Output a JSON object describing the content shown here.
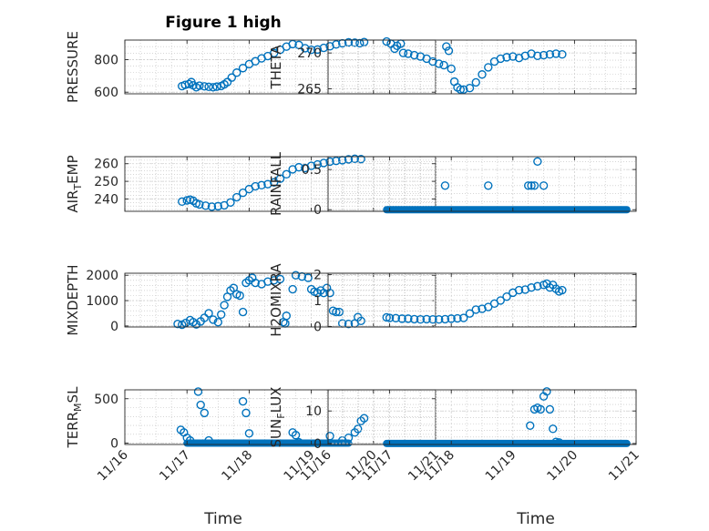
{
  "figure": {
    "title": "Figure 1 high",
    "xlabel": "Time"
  },
  "colors": {
    "marker": "#0072BD",
    "axis": "#262626",
    "grid": "#bdbdbd"
  },
  "chart_data": [
    {
      "type": "scatter",
      "name": "pressure",
      "ylabel": "PRESSURE",
      "ylabel_parts": [
        {
          "t": "PRESSURE",
          "s": "n"
        }
      ],
      "xlim": [
        16,
        21
      ],
      "ylim": [
        590,
        920
      ],
      "yticks": [
        600,
        800
      ],
      "yticklabels": [
        "600",
        "800"
      ],
      "xticks": [
        16,
        17,
        18,
        19,
        20,
        21
      ],
      "xticklabels": [
        "11/16",
        "11/17",
        "11/18",
        "11/19",
        "11/20",
        "11/21"
      ],
      "grid": "on",
      "show_xticklabels": false,
      "points": [
        [
          16.92,
          637
        ],
        [
          16.97,
          645
        ],
        [
          17.03,
          650
        ],
        [
          17.07,
          662
        ],
        [
          17.1,
          642
        ],
        [
          17.15,
          630
        ],
        [
          17.2,
          640
        ],
        [
          17.28,
          636
        ],
        [
          17.35,
          633
        ],
        [
          17.42,
          630
        ],
        [
          17.48,
          634
        ],
        [
          17.55,
          638
        ],
        [
          17.6,
          648
        ],
        [
          17.65,
          662
        ],
        [
          17.72,
          690
        ],
        [
          17.8,
          720
        ],
        [
          17.9,
          748
        ],
        [
          18.0,
          772
        ],
        [
          18.1,
          790
        ],
        [
          18.2,
          808
        ],
        [
          18.3,
          822
        ],
        [
          18.4,
          840
        ],
        [
          18.5,
          860
        ],
        [
          18.6,
          880
        ],
        [
          18.7,
          895
        ],
        [
          18.8,
          890
        ],
        [
          18.9,
          870
        ],
        [
          19.0,
          860
        ],
        [
          19.1,
          862
        ],
        [
          19.2,
          872
        ],
        [
          19.3,
          882
        ],
        [
          19.4,
          893
        ],
        [
          19.5,
          900
        ],
        [
          19.6,
          906
        ],
        [
          19.7,
          904
        ],
        [
          19.78,
          901
        ],
        [
          19.85,
          908
        ]
      ]
    },
    {
      "type": "scatter",
      "name": "theta",
      "ylabel": "THETA",
      "ylabel_parts": [
        {
          "t": "THETA",
          "s": "n"
        }
      ],
      "xlim": [
        16,
        21
      ],
      "ylim": [
        264.3,
        271.8
      ],
      "yticks": [
        265,
        270
      ],
      "yticklabels": [
        "265",
        "270"
      ],
      "xticks": [
        16,
        17,
        18,
        19,
        20,
        21
      ],
      "xticklabels": [
        "11/16",
        "11/17",
        "11/18",
        "11/19",
        "11/20",
        "11/21"
      ],
      "grid": "on",
      "show_xticklabels": false,
      "points": [
        [
          16.95,
          271.6
        ],
        [
          17.02,
          271.3
        ],
        [
          17.08,
          270.6
        ],
        [
          17.12,
          271.0
        ],
        [
          17.18,
          271.3
        ],
        [
          17.22,
          270.0
        ],
        [
          17.3,
          269.9
        ],
        [
          17.4,
          269.7
        ],
        [
          17.5,
          269.5
        ],
        [
          17.6,
          269.2
        ],
        [
          17.7,
          268.8
        ],
        [
          17.8,
          268.5
        ],
        [
          17.88,
          268.3
        ],
        [
          17.92,
          270.9
        ],
        [
          17.96,
          270.3
        ],
        [
          18.0,
          267.8
        ],
        [
          18.05,
          266.0
        ],
        [
          18.1,
          265.2
        ],
        [
          18.15,
          264.9
        ],
        [
          18.2,
          264.9
        ],
        [
          18.3,
          265.1
        ],
        [
          18.4,
          265.9
        ],
        [
          18.5,
          267.0
        ],
        [
          18.6,
          268.0
        ],
        [
          18.7,
          268.8
        ],
        [
          18.8,
          269.2
        ],
        [
          18.9,
          269.4
        ],
        [
          19.0,
          269.5
        ],
        [
          19.1,
          269.3
        ],
        [
          19.2,
          269.6
        ],
        [
          19.3,
          269.9
        ],
        [
          19.4,
          269.6
        ],
        [
          19.5,
          269.7
        ],
        [
          19.6,
          269.8
        ],
        [
          19.7,
          269.9
        ],
        [
          19.8,
          269.8
        ]
      ]
    },
    {
      "type": "scatter",
      "name": "air_temp",
      "ylabel": "AIR_TEMP",
      "ylabel_parts": [
        {
          "t": "AIR",
          "s": "n"
        },
        {
          "t": "T",
          "s": "sub"
        },
        {
          "t": "EMP",
          "s": "n"
        }
      ],
      "xlim": [
        16,
        21
      ],
      "ylim": [
        233,
        264
      ],
      "yticks": [
        240,
        250,
        260
      ],
      "yticklabels": [
        "240",
        "250",
        "260"
      ],
      "xticks": [
        16,
        17,
        18,
        19,
        20,
        21
      ],
      "xticklabels": [
        "11/16",
        "11/17",
        "11/18",
        "11/19",
        "11/20",
        "11/21"
      ],
      "grid": "on",
      "show_xticklabels": false,
      "points": [
        [
          16.92,
          238.5
        ],
        [
          17.0,
          239.2
        ],
        [
          17.05,
          239.6
        ],
        [
          17.1,
          239.0
        ],
        [
          17.15,
          237.5
        ],
        [
          17.2,
          236.9
        ],
        [
          17.3,
          236.2
        ],
        [
          17.4,
          235.6
        ],
        [
          17.5,
          235.9
        ],
        [
          17.6,
          236.4
        ],
        [
          17.7,
          238.0
        ],
        [
          17.8,
          241.0
        ],
        [
          17.9,
          243.5
        ],
        [
          18.0,
          245.6
        ],
        [
          18.1,
          247.2
        ],
        [
          18.2,
          247.8
        ],
        [
          18.3,
          248.4
        ],
        [
          18.4,
          249.4
        ],
        [
          18.5,
          251.5
        ],
        [
          18.6,
          254.0
        ],
        [
          18.7,
          256.8
        ],
        [
          18.8,
          258.0
        ],
        [
          18.9,
          257.5
        ],
        [
          19.0,
          258.8
        ],
        [
          19.1,
          259.6
        ],
        [
          19.2,
          260.4
        ],
        [
          19.3,
          261.2
        ],
        [
          19.4,
          261.6
        ],
        [
          19.5,
          262.0
        ],
        [
          19.6,
          262.5
        ],
        [
          19.7,
          262.8
        ],
        [
          19.8,
          262.6
        ]
      ]
    },
    {
      "type": "scatter",
      "name": "rainfall",
      "ylabel": "RAINFALL",
      "ylabel_parts": [
        {
          "t": "RAINFALL",
          "s": "n"
        }
      ],
      "xlim": [
        16,
        21
      ],
      "ylim": [
        -0.02,
        0.66
      ],
      "yticks": [
        0,
        0.5
      ],
      "yticklabels": [
        "0",
        "0.5"
      ],
      "xticks": [
        16,
        17,
        18,
        19,
        20,
        21
      ],
      "xticklabels": [
        "11/16",
        "11/17",
        "11/18",
        "11/19",
        "11/20",
        "11/21"
      ],
      "grid": "on",
      "show_xticklabels": false,
      "points": [
        [
          17.9,
          0.3
        ],
        [
          18.6,
          0.3
        ],
        [
          19.25,
          0.3
        ],
        [
          19.3,
          0.3
        ],
        [
          19.35,
          0.3
        ],
        [
          19.4,
          0.6
        ],
        [
          19.5,
          0.3
        ]
      ],
      "baseline": {
        "y": 0,
        "from": 16.95,
        "to": 20.85
      }
    },
    {
      "type": "scatter",
      "name": "mixdepth",
      "ylabel": "MIXDEPTH",
      "ylabel_parts": [
        {
          "t": "MIXDEPTH",
          "s": "n"
        }
      ],
      "xlim": [
        16,
        21
      ],
      "ylim": [
        -40,
        2080
      ],
      "yticks": [
        0,
        1000,
        2000
      ],
      "yticklabels": [
        "0",
        "1000",
        "2000"
      ],
      "xticks": [
        16,
        17,
        18,
        19,
        20,
        21
      ],
      "xticklabels": [
        "11/16",
        "11/17",
        "11/18",
        "11/19",
        "11/20",
        "11/21"
      ],
      "grid": "on",
      "show_xticklabels": false,
      "points": [
        [
          16.85,
          80
        ],
        [
          16.92,
          50
        ],
        [
          16.98,
          120
        ],
        [
          17.05,
          230
        ],
        [
          17.1,
          150
        ],
        [
          17.15,
          60
        ],
        [
          17.22,
          180
        ],
        [
          17.28,
          320
        ],
        [
          17.35,
          500
        ],
        [
          17.42,
          250
        ],
        [
          17.5,
          150
        ],
        [
          17.55,
          450
        ],
        [
          17.6,
          820
        ],
        [
          17.65,
          1150
        ],
        [
          17.7,
          1400
        ],
        [
          17.75,
          1500
        ],
        [
          17.8,
          1250
        ],
        [
          17.85,
          1200
        ],
        [
          17.9,
          550
        ],
        [
          17.95,
          1700
        ],
        [
          18.0,
          1800
        ],
        [
          18.05,
          1900
        ],
        [
          18.1,
          1700
        ],
        [
          18.2,
          1650
        ],
        [
          18.3,
          1750
        ],
        [
          18.4,
          1800
        ],
        [
          18.5,
          1850
        ],
        [
          18.55,
          150
        ],
        [
          18.58,
          100
        ],
        [
          18.6,
          400
        ],
        [
          18.7,
          1450
        ],
        [
          18.75,
          2000
        ],
        [
          18.85,
          1950
        ],
        [
          18.95,
          1900
        ],
        [
          19.0,
          1450
        ],
        [
          19.05,
          1350
        ],
        [
          19.1,
          1300
        ],
        [
          19.15,
          1400
        ],
        [
          19.2,
          1300
        ],
        [
          19.25,
          1500
        ],
        [
          19.3,
          1300
        ],
        [
          19.35,
          600
        ],
        [
          19.4,
          550
        ],
        [
          19.45,
          550
        ],
        [
          19.5,
          100
        ],
        [
          19.6,
          80
        ],
        [
          19.7,
          100
        ],
        [
          19.75,
          350
        ],
        [
          19.8,
          200
        ]
      ]
    },
    {
      "type": "scatter",
      "name": "h2omixra",
      "ylabel": "H2OMIXRA",
      "ylabel_parts": [
        {
          "t": "H2OMIXRA",
          "s": "n"
        }
      ],
      "xlim": [
        16,
        21
      ],
      "ylim": [
        -0.02,
        2.05
      ],
      "yticks": [
        0,
        1,
        2
      ],
      "yticklabels": [
        "0",
        "1",
        "2"
      ],
      "xticks": [
        16,
        17,
        18,
        19,
        20,
        21
      ],
      "xticklabels": [
        "11/16",
        "11/17",
        "11/18",
        "11/19",
        "11/20",
        "11/21"
      ],
      "grid": "on",
      "show_xticklabels": false,
      "points": [
        [
          16.95,
          0.35
        ],
        [
          17.0,
          0.33
        ],
        [
          17.1,
          0.32
        ],
        [
          17.2,
          0.3
        ],
        [
          17.3,
          0.3
        ],
        [
          17.4,
          0.28
        ],
        [
          17.5,
          0.27
        ],
        [
          17.6,
          0.28
        ],
        [
          17.7,
          0.27
        ],
        [
          17.8,
          0.27
        ],
        [
          17.9,
          0.28
        ],
        [
          18.0,
          0.3
        ],
        [
          18.1,
          0.31
        ],
        [
          18.2,
          0.33
        ],
        [
          18.3,
          0.5
        ],
        [
          18.4,
          0.65
        ],
        [
          18.5,
          0.68
        ],
        [
          18.6,
          0.75
        ],
        [
          18.7,
          0.88
        ],
        [
          18.8,
          1.0
        ],
        [
          18.9,
          1.15
        ],
        [
          19.0,
          1.3
        ],
        [
          19.1,
          1.4
        ],
        [
          19.2,
          1.42
        ],
        [
          19.3,
          1.5
        ],
        [
          19.4,
          1.55
        ],
        [
          19.5,
          1.6
        ],
        [
          19.55,
          1.65
        ],
        [
          19.6,
          1.5
        ],
        [
          19.65,
          1.6
        ],
        [
          19.7,
          1.45
        ],
        [
          19.75,
          1.35
        ],
        [
          19.8,
          1.4
        ]
      ]
    },
    {
      "type": "scatter",
      "name": "terr_msl",
      "ylabel": "TERR_MSL",
      "ylabel_parts": [
        {
          "t": "TERR",
          "s": "n"
        },
        {
          "t": "M",
          "s": "sub"
        },
        {
          "t": "SL",
          "s": "n"
        }
      ],
      "xlim": [
        16,
        21
      ],
      "ylim": [
        -15,
        600
      ],
      "yticks": [
        0,
        500
      ],
      "yticklabels": [
        "0",
        "500"
      ],
      "xticks": [
        16,
        17,
        18,
        19,
        20,
        21
      ],
      "xticklabels": [
        "11/16",
        "11/17",
        "11/18",
        "11/19",
        "11/20",
        "11/21"
      ],
      "grid": "on",
      "show_xticklabels": true,
      "points": [
        [
          16.9,
          150
        ],
        [
          16.95,
          120
        ],
        [
          17.0,
          60
        ],
        [
          17.05,
          30
        ],
        [
          17.18,
          580
        ],
        [
          17.22,
          430
        ],
        [
          17.28,
          340
        ],
        [
          17.35,
          30
        ],
        [
          17.9,
          470
        ],
        [
          17.95,
          340
        ],
        [
          18.0,
          110
        ],
        [
          18.7,
          120
        ],
        [
          18.75,
          90
        ],
        [
          18.8,
          10
        ],
        [
          19.3,
          80
        ],
        [
          19.5,
          30
        ],
        [
          19.6,
          60
        ],
        [
          19.7,
          120
        ],
        [
          19.75,
          160
        ],
        [
          19.8,
          250
        ],
        [
          19.85,
          280
        ]
      ],
      "baseline": {
        "y": 0,
        "from": 17.0,
        "to": 19.6
      }
    },
    {
      "type": "scatter",
      "name": "sun_flux",
      "ylabel": "SUN_FLUX",
      "ylabel_parts": [
        {
          "t": "SUN",
          "s": "n"
        },
        {
          "t": "F",
          "s": "sub"
        },
        {
          "t": "LUX",
          "s": "n"
        }
      ],
      "xlim": [
        16,
        21
      ],
      "ylim": [
        -0.3,
        16.5
      ],
      "yticks": [
        0,
        10
      ],
      "yticklabels": [
        "0",
        "10"
      ],
      "xticks": [
        16,
        17,
        18,
        19,
        20,
        21
      ],
      "xticklabels": [
        "11/16",
        "11/17",
        "11/18",
        "11/19",
        "11/20",
        "11/21"
      ],
      "grid": "on",
      "show_xticklabels": true,
      "points": [
        [
          19.28,
          5.5
        ],
        [
          19.35,
          10.5
        ],
        [
          19.4,
          11.0
        ],
        [
          19.45,
          10.5
        ],
        [
          19.5,
          14.5
        ],
        [
          19.55,
          16.0
        ],
        [
          19.6,
          10.5
        ],
        [
          19.65,
          4.5
        ],
        [
          19.7,
          0.5
        ],
        [
          19.75,
          0.3
        ]
      ],
      "baseline": {
        "y": 0,
        "from": 16.95,
        "to": 20.85
      }
    }
  ]
}
